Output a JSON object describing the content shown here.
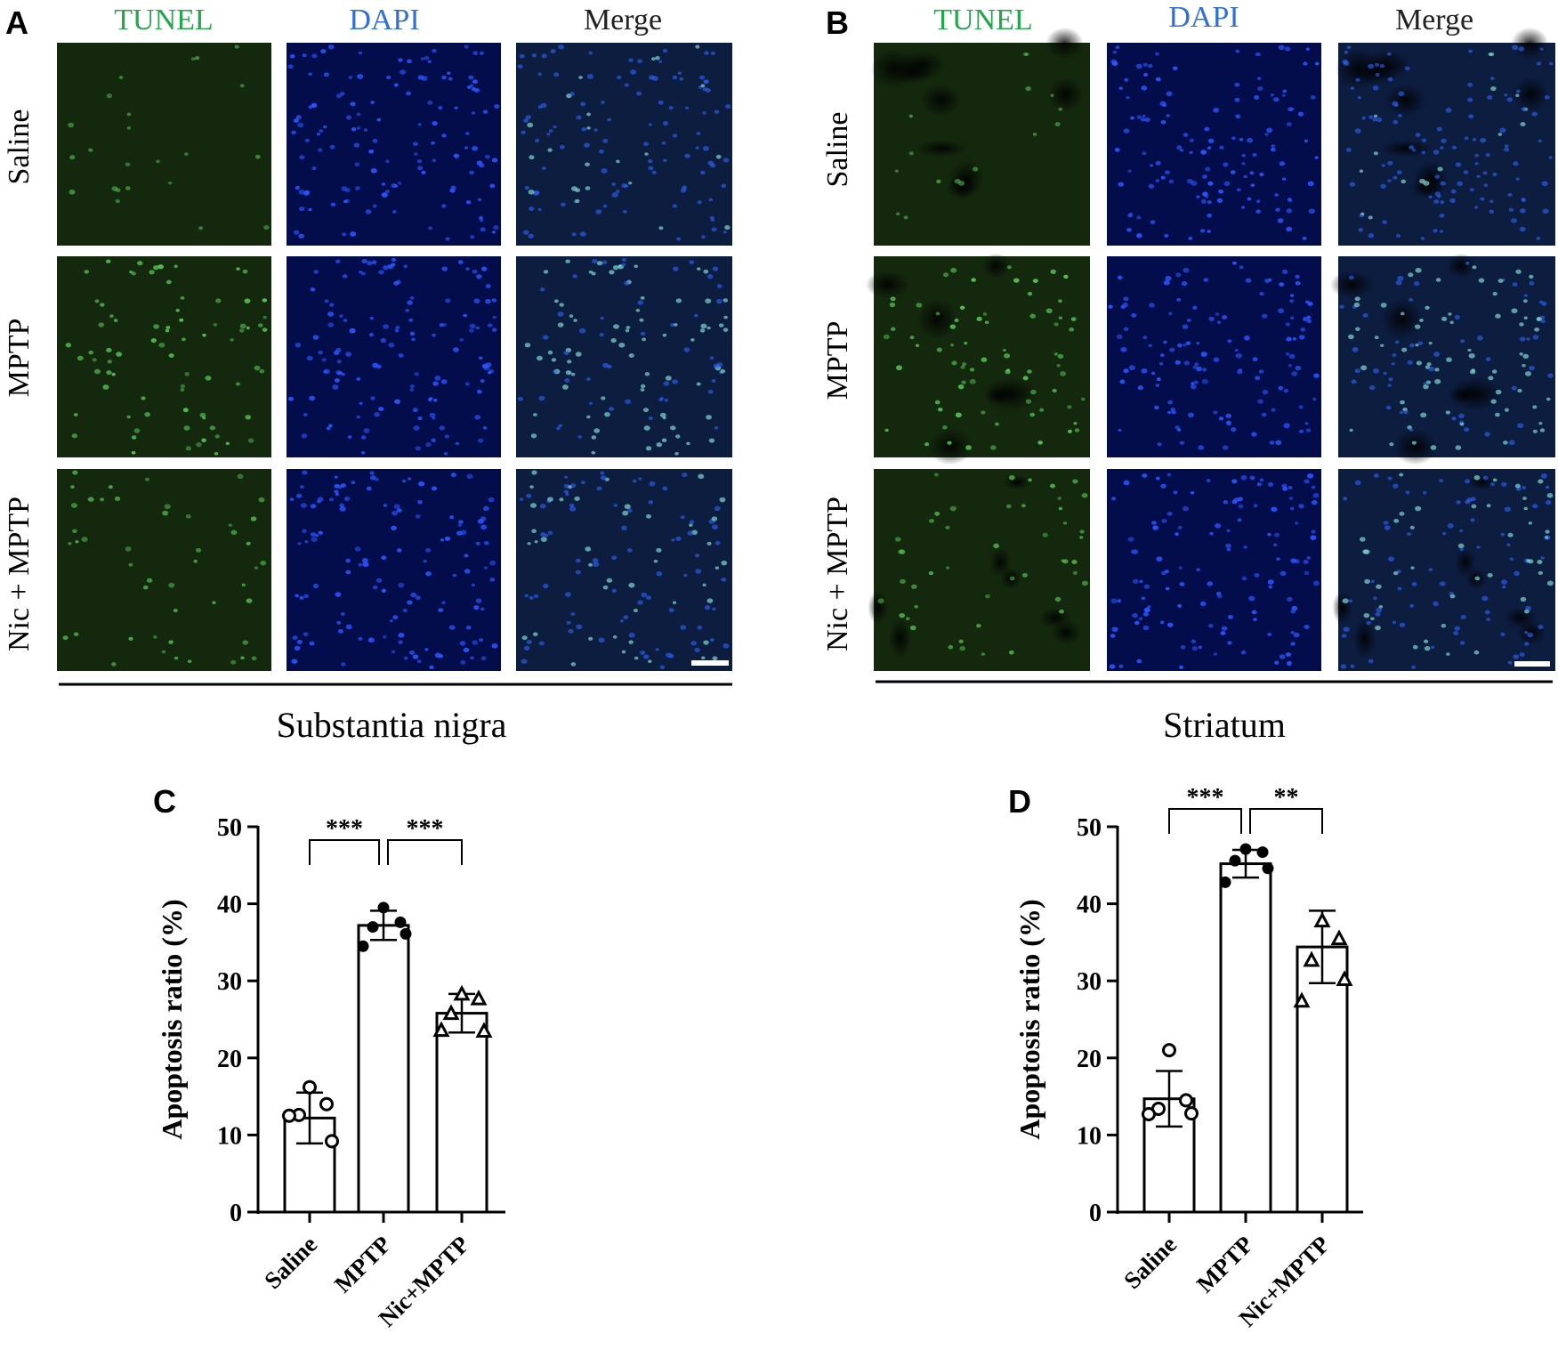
{
  "colors": {
    "tunel": "#22a84a",
    "dapi": "#2f6fd6",
    "merge": "#222222",
    "tunel_tissue": "#14280e",
    "dapi_tissue": "#040d4c",
    "merge_tissue": "#0d1d40"
  },
  "panel_letters": {
    "a": "A",
    "b": "B",
    "c": "C",
    "d": "D"
  },
  "micrographs": {
    "columns": [
      "TUNEL",
      "DAPI",
      "Merge"
    ],
    "rows": [
      "Saline",
      "MPTP",
      "Nic + MPTP"
    ],
    "region_a": "Substantia nigra",
    "region_b": "Striatum"
  },
  "chart_data": [
    {
      "type": "bar",
      "panel": "C",
      "title": "",
      "ylabel": "Apoptosis ratio (%)",
      "ylim": [
        0,
        50
      ],
      "yticks": [
        0,
        10,
        20,
        30,
        40,
        50
      ],
      "categories": [
        "Saline",
        "MPTP",
        "Nic+MPTP"
      ],
      "values": [
        12.2,
        37.2,
        25.8
      ],
      "errors": [
        3.3,
        1.9,
        2.5
      ],
      "markers": [
        "open-circle",
        "filled-circle",
        "open-triangle"
      ],
      "points": [
        [
          16.2,
          14.0,
          12.6,
          9.2,
          12.5
        ],
        [
          39.5,
          37.6,
          37.0,
          36.1,
          34.5
        ],
        [
          28.3,
          27.7,
          25.8,
          23.5,
          23.6
        ]
      ],
      "significance": [
        {
          "from": 0,
          "to": 1,
          "label": "***"
        },
        {
          "from": 1,
          "to": 2,
          "label": "***"
        }
      ]
    },
    {
      "type": "bar",
      "panel": "D",
      "title": "",
      "ylabel": "Apoptosis ratio (%)",
      "ylim": [
        0,
        50
      ],
      "yticks": [
        0,
        10,
        20,
        30,
        40,
        50
      ],
      "categories": [
        "Saline",
        "MPTP",
        "Nic+MPTP"
      ],
      "values": [
        14.7,
        45.2,
        34.4
      ],
      "errors": [
        3.6,
        1.8,
        4.7
      ],
      "markers": [
        "open-circle",
        "filled-circle",
        "open-triangle"
      ],
      "points": [
        [
          21.0,
          14.5,
          13.4,
          12.8,
          12.7
        ],
        [
          47.1,
          46.7,
          45.6,
          44.6,
          42.8
        ],
        [
          37.8,
          35.5,
          32.7,
          30.2,
          27.4
        ]
      ],
      "significance": [
        {
          "from": 0,
          "to": 1,
          "label": "***"
        },
        {
          "from": 1,
          "to": 2,
          "label": "**"
        }
      ]
    }
  ]
}
